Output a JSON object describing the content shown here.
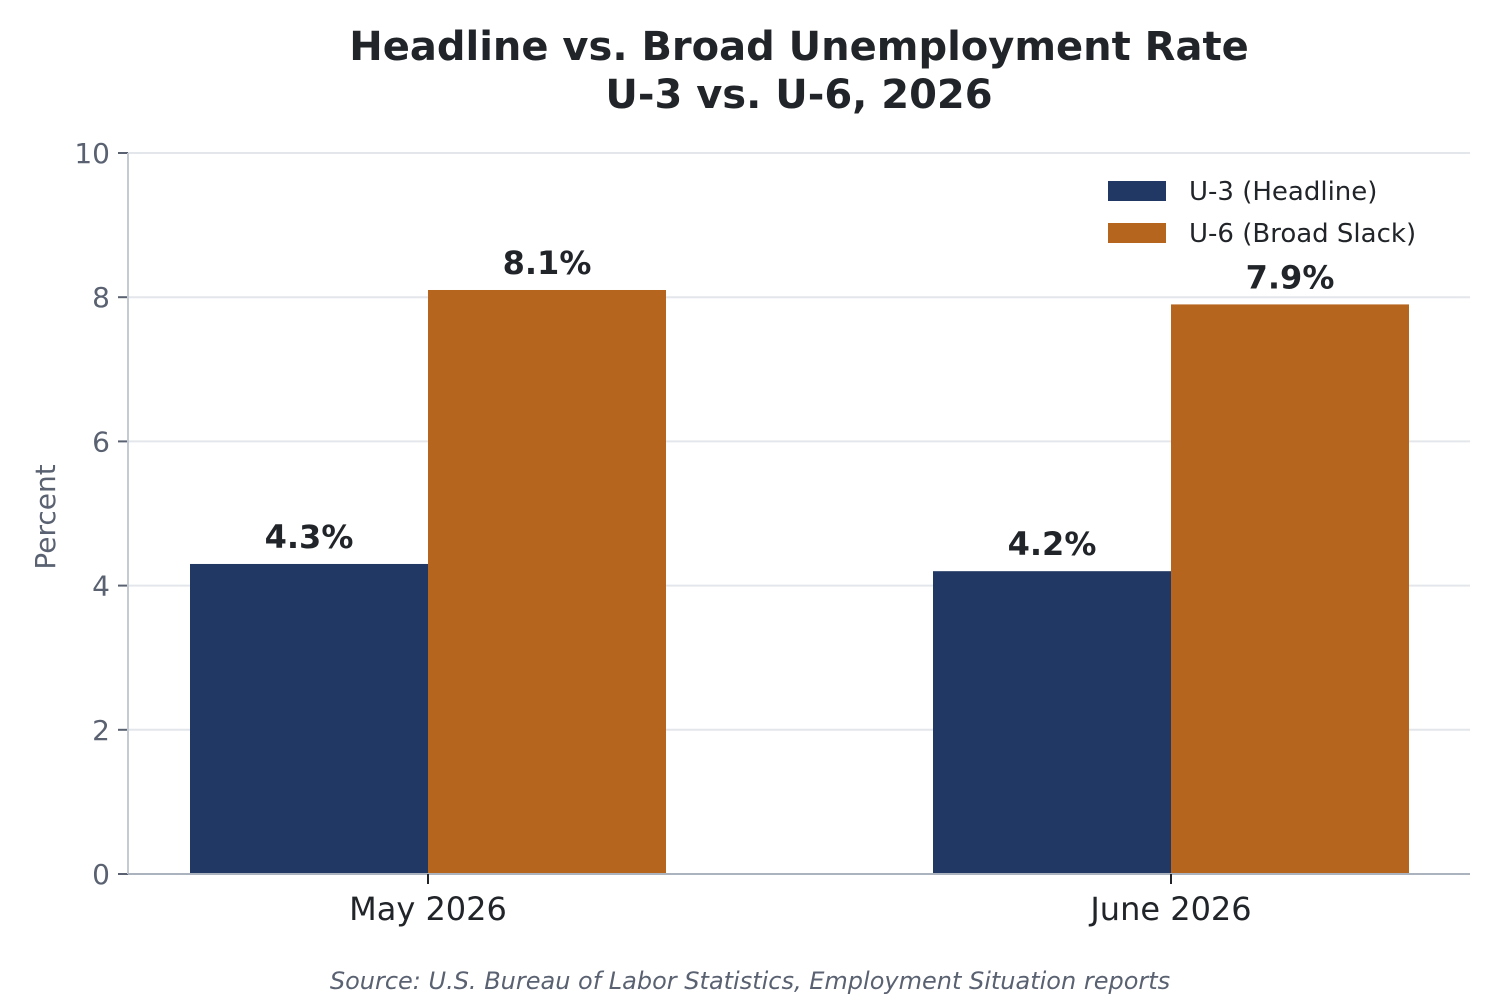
{
  "chart_data": {
    "type": "bar",
    "title": "Headline vs. Broad Unemployment Rate",
    "subtitle": "U-3 vs. U-6, 2026",
    "ylabel": "Percent",
    "xlabel": "",
    "categories": [
      "May 2026",
      "June 2026"
    ],
    "series": [
      {
        "name": "U-3 (Headline)",
        "values": [
          4.3,
          4.2
        ],
        "labels": [
          "4.3%",
          "4.2%"
        ],
        "color": "#213864"
      },
      {
        "name": "U-6 (Broad Slack)",
        "values": [
          8.1,
          7.9
        ],
        "labels": [
          "8.1%",
          "7.9%"
        ],
        "color": "#b5651d"
      }
    ],
    "ylim": [
      0,
      10
    ],
    "yticks": [
      0,
      2,
      4,
      6,
      8,
      10
    ],
    "ytick_labels": [
      "0",
      "2",
      "4",
      "6",
      "8",
      "10"
    ],
    "grid": true,
    "legend_position": "top-right",
    "source": "Source: U.S. Bureau of Labor Statistics, Employment Situation reports"
  }
}
